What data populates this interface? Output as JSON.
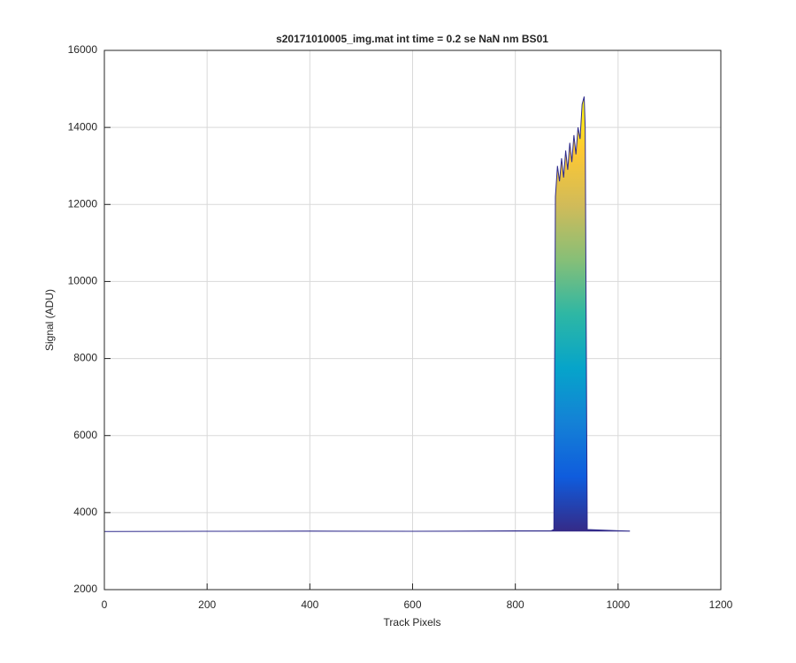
{
  "chart_data": {
    "type": "area",
    "title": "s20171010005_img.mat int time = 0.2 se  NaN nm BS01",
    "x_label": "Track Pixels",
    "y_label": "Signal (ADU)",
    "x": [
      0,
      200,
      400,
      600,
      800,
      870,
      875,
      878,
      882,
      886,
      890,
      894,
      898,
      902,
      906,
      910,
      914,
      918,
      922,
      926,
      930,
      934,
      936,
      940,
      1000,
      1023
    ],
    "values": [
      3510,
      3515,
      3520,
      3515,
      3525,
      3530,
      3560,
      12200,
      13000,
      12600,
      13200,
      12700,
      13400,
      12900,
      13600,
      13100,
      13800,
      13300,
      14000,
      13700,
      14600,
      14800,
      14000,
      3560,
      3530,
      3520
    ],
    "color": "#2e2a8c",
    "colormap": [
      "#352a87",
      "#0f5cdd",
      "#1481d6",
      "#06a4ca",
      "#2eb7a4",
      "#87bf77",
      "#d1bb59",
      "#fec832",
      "#f9fb0e"
    ],
    "xlim": [
      0,
      1200
    ],
    "xticks": [
      0,
      200,
      400,
      600,
      800,
      1000,
      1200
    ],
    "ylim": [
      2000,
      16000
    ],
    "yticks": [
      2000,
      4000,
      6000,
      8000,
      10000,
      12000,
      14000,
      16000
    ],
    "grid": true
  }
}
